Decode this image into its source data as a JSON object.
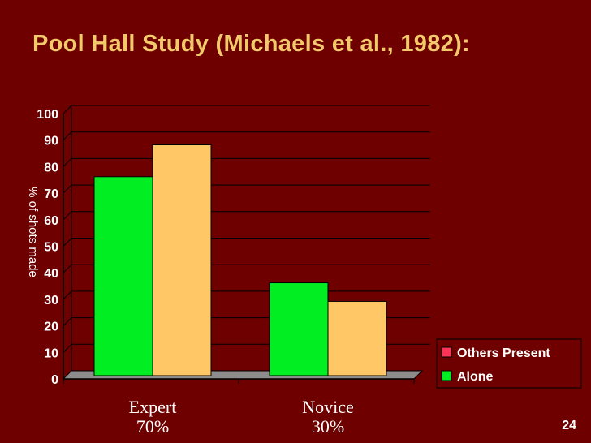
{
  "slide": {
    "title": "Pool Hall Study (Michaels et al., 1982):",
    "page_number": "24"
  },
  "colors": {
    "background": "#6e0000",
    "title": "#f2c96b",
    "others_present": "#ff3355",
    "alone": "#00ee22",
    "bar_alone": "#00ee22",
    "bar_other": "#ffc766",
    "floor": "#8c8c8c"
  },
  "chart_data": {
    "type": "bar",
    "title": "",
    "xlabel": "",
    "ylabel": "% of shots made",
    "ylim": [
      0,
      100
    ],
    "yticks": [
      "0",
      "10",
      "20",
      "30",
      "40",
      "50",
      "60",
      "70",
      "80",
      "90",
      "100"
    ],
    "categories": [
      {
        "name": "Expert",
        "sublabel": "70%"
      },
      {
        "name": "Novice",
        "sublabel": "30%"
      }
    ],
    "bars": [
      {
        "values": [
          75,
          35
        ]
      },
      {
        "values": [
          87,
          28
        ]
      }
    ],
    "legend": {
      "placement": "bottom-right",
      "entries": [
        "Others Present",
        "Alone"
      ]
    },
    "grid": true
  }
}
